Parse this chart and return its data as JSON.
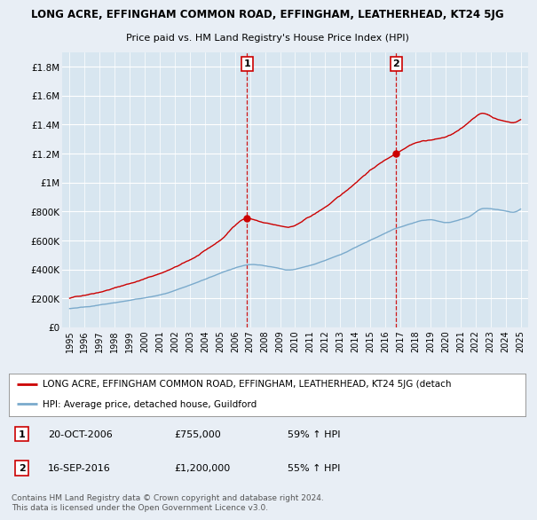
{
  "title": "LONG ACRE, EFFINGHAM COMMON ROAD, EFFINGHAM, LEATHERHEAD, KT24 5JG",
  "subtitle": "Price paid vs. HM Land Registry's House Price Index (HPI)",
  "bg_color": "#e8eef5",
  "plot_bg_color": "#d8e6f0",
  "grid_color": "#ffffff",
  "red_color": "#cc0000",
  "blue_color": "#7aaacc",
  "sale1_x": 2006.8,
  "sale1_y": 755000,
  "sale2_x": 2016.72,
  "sale2_y": 1200000,
  "sale1_date": "20-OCT-2006",
  "sale1_price": "£755,000",
  "sale1_hpi": "59% ↑ HPI",
  "sale2_date": "16-SEP-2016",
  "sale2_price": "£1,200,000",
  "sale2_hpi": "55% ↑ HPI",
  "legend_red": "LONG ACRE, EFFINGHAM COMMON ROAD, EFFINGHAM, LEATHERHEAD, KT24 5JG (detach",
  "legend_blue": "HPI: Average price, detached house, Guildford",
  "footer": "Contains HM Land Registry data © Crown copyright and database right 2024.\nThis data is licensed under the Open Government Licence v3.0.",
  "yticks": [
    0,
    200000,
    400000,
    600000,
    800000,
    1000000,
    1200000,
    1400000,
    1600000,
    1800000
  ],
  "ytick_labels": [
    "£0",
    "£200K",
    "£400K",
    "£600K",
    "£800K",
    "£1M",
    "£1.2M",
    "£1.4M",
    "£1.6M",
    "£1.8M"
  ],
  "ylim": [
    0,
    1900000
  ],
  "xlim": [
    1994.5,
    2025.5
  ]
}
